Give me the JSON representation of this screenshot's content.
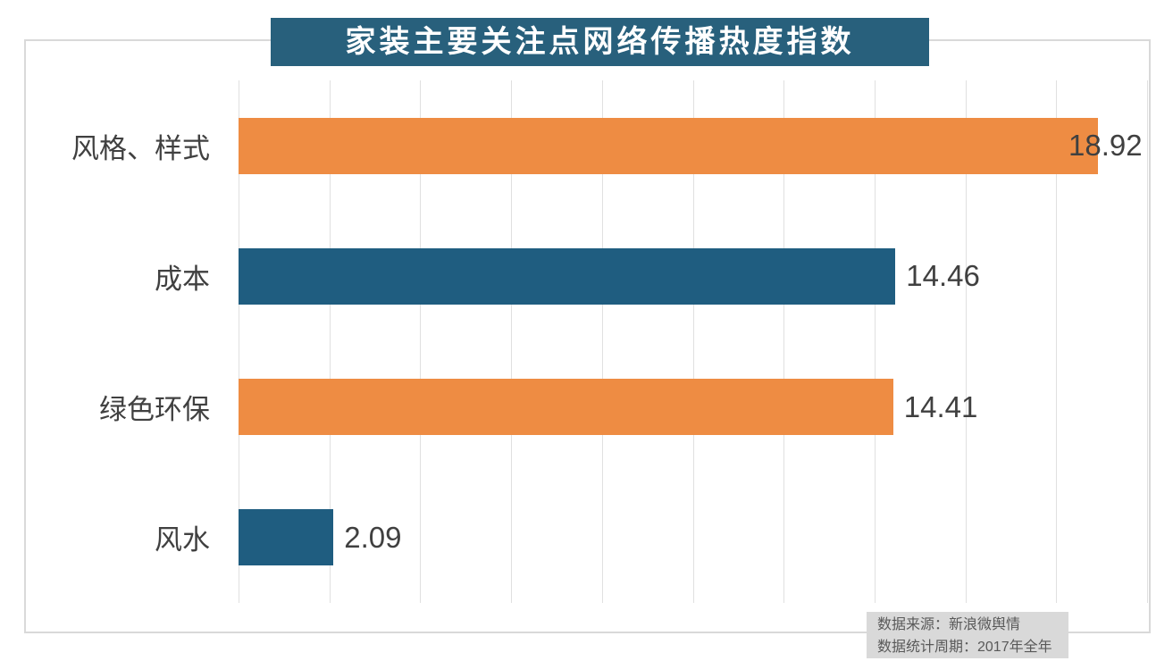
{
  "title": "家装主要关注点网络传播热度指数",
  "chart_data": {
    "type": "bar",
    "orientation": "horizontal",
    "title": "家装主要关注点网络传播热度指数",
    "categories": [
      "风格、样式",
      "成本",
      "绿色环保",
      "风水"
    ],
    "values": [
      18.92,
      14.46,
      14.41,
      2.09
    ],
    "value_labels": [
      "18.92",
      "14.46",
      "14.41",
      "2.09"
    ],
    "bar_colors": [
      "#ee8c43",
      "#1f5d80",
      "#ee8c43",
      "#1f5d80"
    ],
    "xlim": [
      0,
      20
    ],
    "grid_step": 2,
    "grid": true,
    "x_tick_labels_visible": false,
    "legend": "none",
    "value_label_position": "outside-end-clamped"
  },
  "source_note": {
    "line1": "数据来源：新浪微舆情",
    "line2": "数据统计周期：2017年全年"
  },
  "colors": {
    "orange": "#ee8c43",
    "teal": "#1f5d80",
    "title_bg": "#28607c",
    "title_text": "#ffffff",
    "grid": "#e0e0e0",
    "panel_border": "#d9d9d9",
    "label_text": "#404040",
    "note_bg": "#d9d9d9",
    "note_text": "#595959"
  }
}
